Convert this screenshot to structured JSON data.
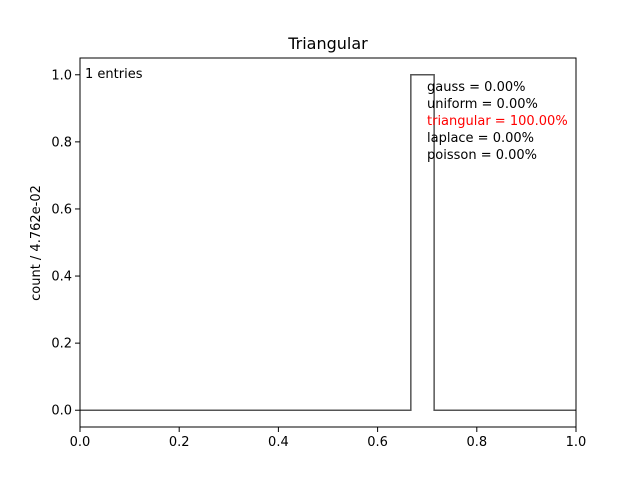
{
  "chart_data": {
    "type": "step",
    "title": "Triangular",
    "xlabel": "",
    "ylabel": "count / 4.762e-02",
    "xlim": [
      0.0,
      1.0
    ],
    "ylim": [
      -0.05,
      1.05
    ],
    "grid": false,
    "x_ticks": [
      "0.0",
      "0.2",
      "0.4",
      "0.6",
      "0.8",
      "1.0"
    ],
    "y_ticks": [
      "0.0",
      "0.2",
      "0.4",
      "0.6",
      "0.8",
      "1.0"
    ],
    "x_tick_values": [
      0.0,
      0.2,
      0.4,
      0.6,
      0.8,
      1.0
    ],
    "y_tick_values": [
      0.0,
      0.2,
      0.4,
      0.6,
      0.8,
      1.0
    ],
    "series": [
      {
        "color": "#555555",
        "x": [
          0.0,
          0.667,
          0.667,
          0.714,
          0.714,
          1.0
        ],
        "y": [
          0.0,
          0.0,
          1.0,
          1.0,
          0.0,
          0.0
        ]
      }
    ],
    "entries_label": "1 entries",
    "annotations": [
      {
        "text": "gauss = 0.00%",
        "color": "#000000"
      },
      {
        "text": "uniform = 0.00%",
        "color": "#000000"
      },
      {
        "text": "triangular = 100.00%",
        "color": "#ff0000"
      },
      {
        "text": "laplace = 0.00%",
        "color": "#000000"
      },
      {
        "text": "poisson = 0.00%",
        "color": "#000000"
      }
    ]
  }
}
